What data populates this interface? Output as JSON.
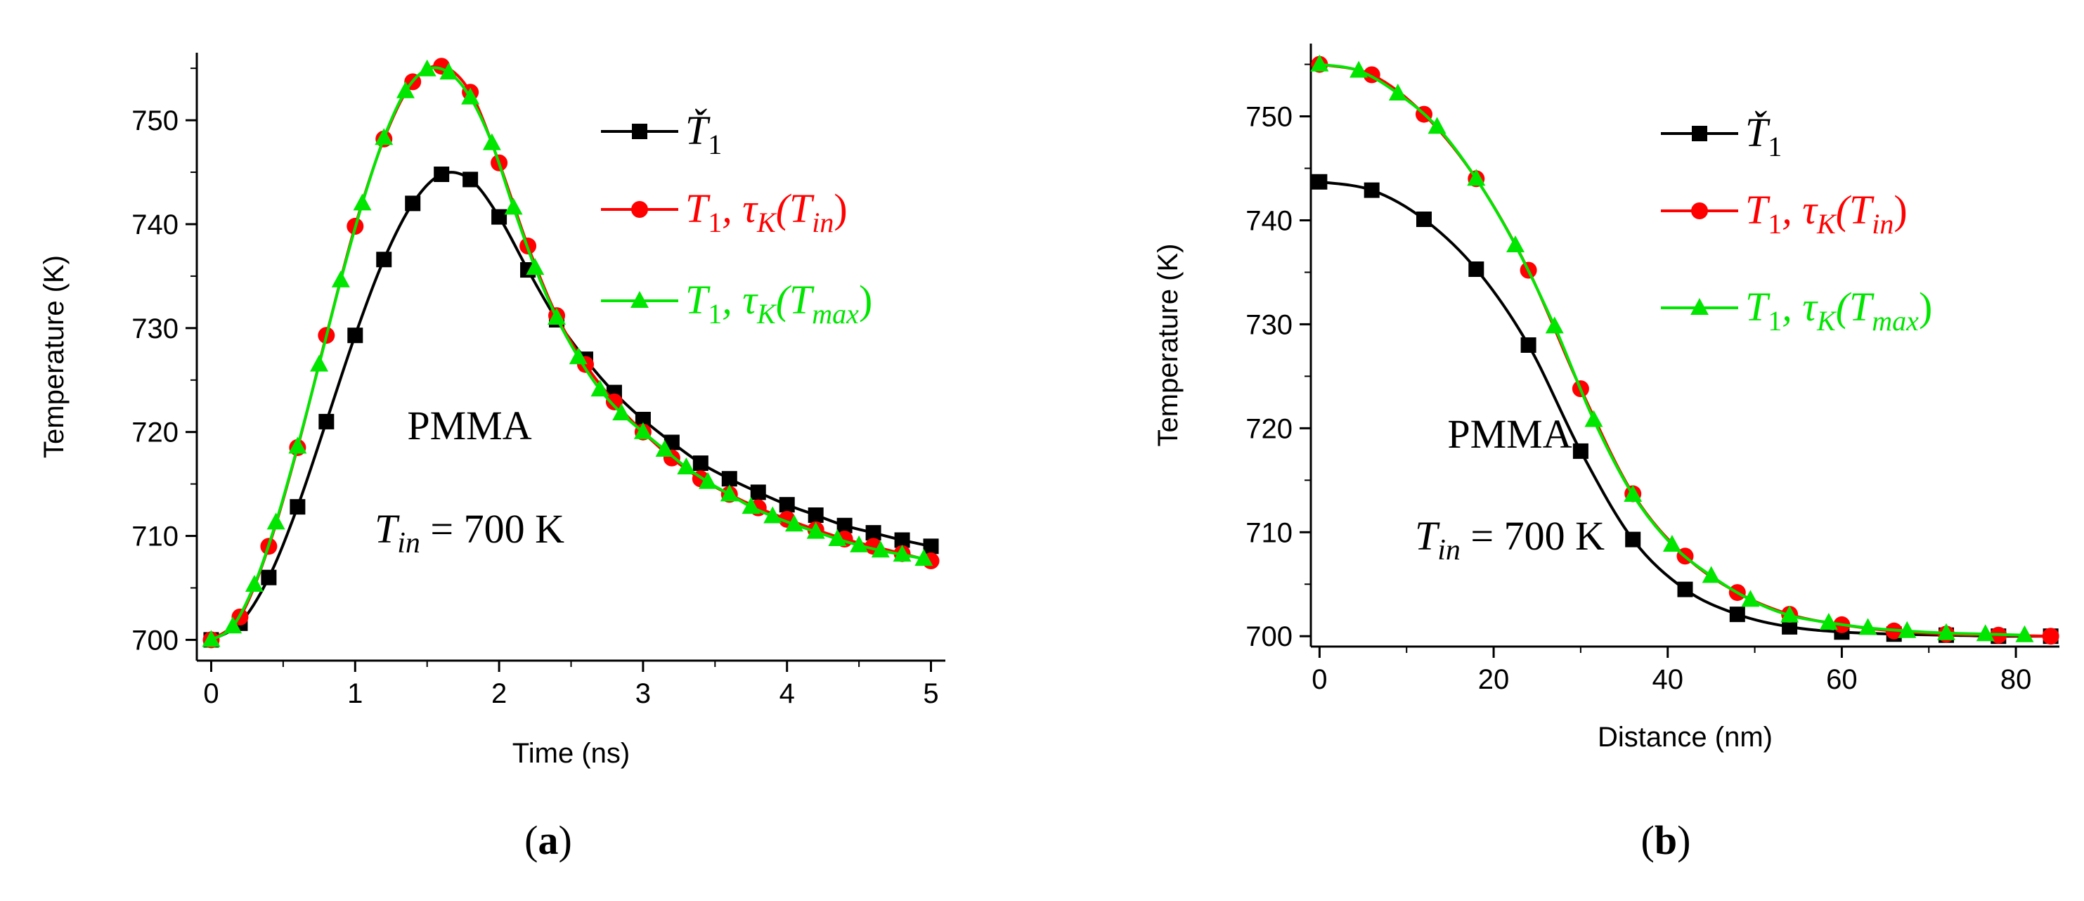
{
  "colors": {
    "T1_check": "#000000",
    "T1_tauK_Tin": "#ff0000",
    "T1_tauK_Tmax": "#00e600"
  },
  "chart_data": [
    {
      "type": "line",
      "panel": "(a)",
      "xlabel": "Time (ns)",
      "ylabel": "Temperature (K)",
      "xlim": [
        -0.1,
        5.1
      ],
      "ylim": [
        698,
        756.5
      ],
      "xticks": [
        0,
        1,
        2,
        3,
        4,
        5
      ],
      "yticks": [
        700,
        710,
        720,
        730,
        740,
        750
      ],
      "annotation_text": "PMMA",
      "annotation_formula": {
        "base": "T",
        "sub": "in",
        "rest": "= 700 K"
      },
      "legend": [
        {
          "key": "T1_check",
          "base": "Ť",
          "sub": "1",
          "tail": "",
          "tailSub": "",
          "close": ""
        },
        {
          "key": "T1_tauK_Tin",
          "base": "T",
          "sub": "1",
          "tail": ", τ",
          "tailSub": "K",
          "inner": "(T",
          "innerSub": "in",
          "close": ")"
        },
        {
          "key": "T1_tauK_Tmax",
          "base": "T",
          "sub": "1",
          "tail": ", τ",
          "tailSub": "K",
          "inner": "(T",
          "innerSub": "max",
          "close": ")"
        }
      ],
      "series": [
        {
          "name": "Ť1",
          "key": "T1_check",
          "marker": "square",
          "x": [
            0,
            0.2,
            0.4,
            0.6,
            0.8,
            1.0,
            1.2,
            1.4,
            1.6,
            1.8,
            2.0,
            2.2,
            2.4,
            2.6,
            2.8,
            3.0,
            3.2,
            3.4,
            3.6,
            3.8,
            4.0,
            4.2,
            4.4,
            4.6,
            4.8,
            5.0
          ],
          "y": [
            700,
            701.6,
            706.0,
            712.8,
            721.0,
            729.3,
            736.6,
            742.0,
            744.8,
            744.3,
            740.7,
            735.6,
            730.8,
            727.0,
            723.8,
            721.2,
            719.0,
            717.0,
            715.5,
            714.2,
            713.0,
            712.0,
            711.0,
            710.3,
            709.6,
            709.0
          ]
        },
        {
          "name": "T1, τK(Tin)",
          "key": "T1_tauK_Tin",
          "marker": "circle",
          "x": [
            0,
            0.2,
            0.4,
            0.6,
            0.8,
            1.0,
            1.2,
            1.4,
            1.6,
            1.8,
            2.0,
            2.2,
            2.4,
            2.6,
            2.8,
            3.0,
            3.2,
            3.4,
            3.6,
            3.8,
            4.0,
            4.2,
            4.4,
            4.6,
            4.8,
            5.0
          ],
          "y": [
            700,
            702.2,
            709.0,
            718.5,
            729.3,
            739.8,
            748.2,
            753.7,
            755.2,
            752.7,
            745.9,
            737.9,
            731.2,
            726.5,
            722.9,
            720.0,
            717.5,
            715.5,
            714.0,
            712.7,
            711.6,
            710.6,
            709.7,
            709.0,
            708.3,
            707.6
          ]
        },
        {
          "name": "T1, τK(Tmax)",
          "key": "T1_tauK_Tmax",
          "marker": "triangle",
          "x": [
            0,
            0.15,
            0.3,
            0.45,
            0.6,
            0.75,
            0.9,
            1.05,
            1.2,
            1.35,
            1.5,
            1.65,
            1.8,
            1.95,
            2.1,
            2.25,
            2.4,
            2.55,
            2.7,
            2.85,
            3.0,
            3.15,
            3.3,
            3.45,
            3.6,
            3.75,
            3.9,
            4.05,
            4.2,
            4.35,
            4.5,
            4.65,
            4.8,
            4.95
          ],
          "y": [
            700,
            701.3,
            705.3,
            711.3,
            718.6,
            726.5,
            734.6,
            742.0,
            748.3,
            752.8,
            754.9,
            754.6,
            752.2,
            747.8,
            741.6,
            735.8,
            731.0,
            727.2,
            724.1,
            721.8,
            720.0,
            718.3,
            716.6,
            715.2,
            714.0,
            712.8,
            711.9,
            711.1,
            710.4,
            709.7,
            709.1,
            708.6,
            708.2,
            707.8
          ]
        }
      ]
    },
    {
      "type": "line",
      "panel": "(b)",
      "xlabel": "Distance (nm)",
      "ylabel": "Temperature (K)",
      "xlim": [
        -1,
        85
      ],
      "ylim": [
        699,
        757
      ],
      "xticks": [
        0,
        20,
        40,
        60,
        80
      ],
      "yticks": [
        700,
        710,
        720,
        730,
        740,
        750
      ],
      "annotation_text": "PMMA",
      "annotation_formula": {
        "base": "T",
        "sub": "in",
        "rest": "= 700 K"
      },
      "legend": [
        {
          "key": "T1_check",
          "base": "Ť",
          "sub": "1",
          "tail": "",
          "tailSub": "",
          "close": ""
        },
        {
          "key": "T1_tauK_Tin",
          "base": "T",
          "sub": "1",
          "tail": ", τ",
          "tailSub": "K",
          "inner": "(T",
          "innerSub": "in",
          "close": ")"
        },
        {
          "key": "T1_tauK_Tmax",
          "base": "T",
          "sub": "1",
          "tail": ", τ",
          "tailSub": "K",
          "inner": "(T",
          "innerSub": "max",
          "close": ")"
        }
      ],
      "series": [
        {
          "name": "Ť1",
          "key": "T1_check",
          "marker": "square",
          "x": [
            0,
            6,
            12,
            18,
            24,
            30,
            36,
            42,
            48,
            54,
            60,
            66,
            72,
            78,
            84
          ],
          "y": [
            743.7,
            742.9,
            740.1,
            735.3,
            728.0,
            717.8,
            709.3,
            704.5,
            702.1,
            700.9,
            700.4,
            700.2,
            700.1,
            700.0,
            700.0
          ]
        },
        {
          "name": "T1, τK(Tin)",
          "key": "T1_tauK_Tin",
          "marker": "circle",
          "x": [
            0,
            6,
            12,
            18,
            24,
            30,
            36,
            42,
            48,
            54,
            60,
            66,
            72,
            78,
            84
          ],
          "y": [
            755.0,
            754.0,
            750.2,
            744.0,
            735.2,
            723.8,
            713.7,
            707.7,
            704.2,
            702.1,
            701.1,
            700.5,
            700.2,
            700.1,
            700.0
          ]
        },
        {
          "name": "T1, τK(Tmax)",
          "key": "T1_tauK_Tmax",
          "marker": "triangle",
          "x": [
            0,
            4.5,
            9,
            13.5,
            18,
            22.5,
            27,
            31.5,
            36,
            40.5,
            45,
            49.5,
            54,
            58.5,
            63,
            67.5,
            72,
            76.5,
            81
          ],
          "y": [
            755.0,
            754.4,
            752.2,
            749.0,
            744.0,
            737.6,
            729.8,
            720.8,
            713.6,
            708.8,
            705.8,
            703.5,
            702.0,
            701.3,
            700.8,
            700.5,
            700.3,
            700.2,
            700.1
          ]
        }
      ]
    }
  ]
}
